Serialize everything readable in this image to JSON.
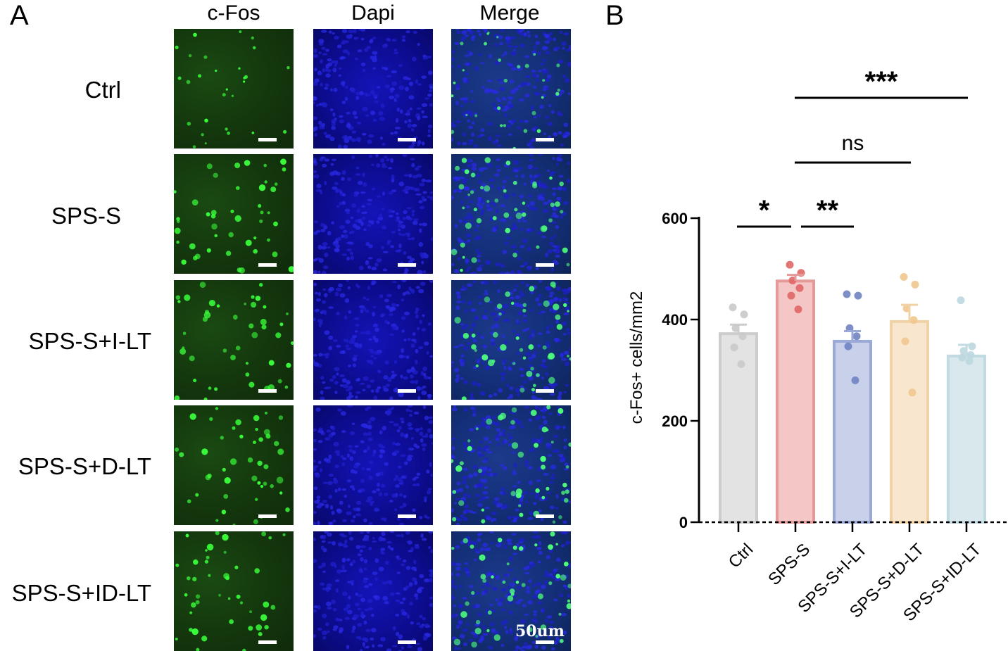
{
  "panel_a": {
    "letter": "A",
    "columns": [
      "c-Fos",
      "Dapi",
      "Merge"
    ],
    "rows": [
      "Ctrl",
      "SPS-S",
      "SPS-S+I-LT",
      "SPS-S+D-LT",
      "SPS-S+ID-LT"
    ],
    "scale_label": "50um"
  },
  "panel_b": {
    "letter": "B"
  },
  "chart_data": {
    "type": "bar",
    "ylabel": "c-Fos+ cells/mm2",
    "xlabel": "",
    "ylim": [
      0,
      600
    ],
    "yticks": [
      0,
      200,
      400,
      600
    ],
    "categories": [
      "Ctrl",
      "SPS-S",
      "SPS-S+I-LT",
      "SPS-S+D-LT",
      "SPS-S+ID-LT"
    ],
    "values": [
      372,
      476,
      357,
      396,
      328
    ],
    "sem": [
      18,
      12,
      20,
      33,
      22
    ],
    "points": [
      [
        424,
        410,
        383,
        367,
        345,
        312
      ],
      [
        508,
        492,
        477,
        462,
        447,
        420
      ],
      [
        450,
        447,
        383,
        367,
        347,
        280
      ],
      [
        484,
        469,
        422,
        399,
        357,
        256
      ],
      [
        438,
        347,
        338,
        330,
        325,
        318
      ]
    ],
    "bar_fills": [
      "#e3e3e3",
      "#f4c6c6",
      "#c9d1ea",
      "#f9e6cf",
      "#d8e8ec"
    ],
    "bar_strokes": [
      "#cccccc",
      "#e59a9a",
      "#9aa9d6",
      "#f1d2a6",
      "#c2dbe2"
    ],
    "point_colors": [
      "#c9c9c9",
      "#e06666",
      "#7083c2",
      "#efc68e",
      "#bcd7df"
    ],
    "comparisons": [
      {
        "from": 0,
        "to": 1,
        "label": "*"
      },
      {
        "from": 1,
        "to": 2,
        "label": "**"
      },
      {
        "from": 1,
        "to": 3,
        "label": "ns"
      },
      {
        "from": 1,
        "to": 4,
        "label": "***"
      }
    ]
  }
}
